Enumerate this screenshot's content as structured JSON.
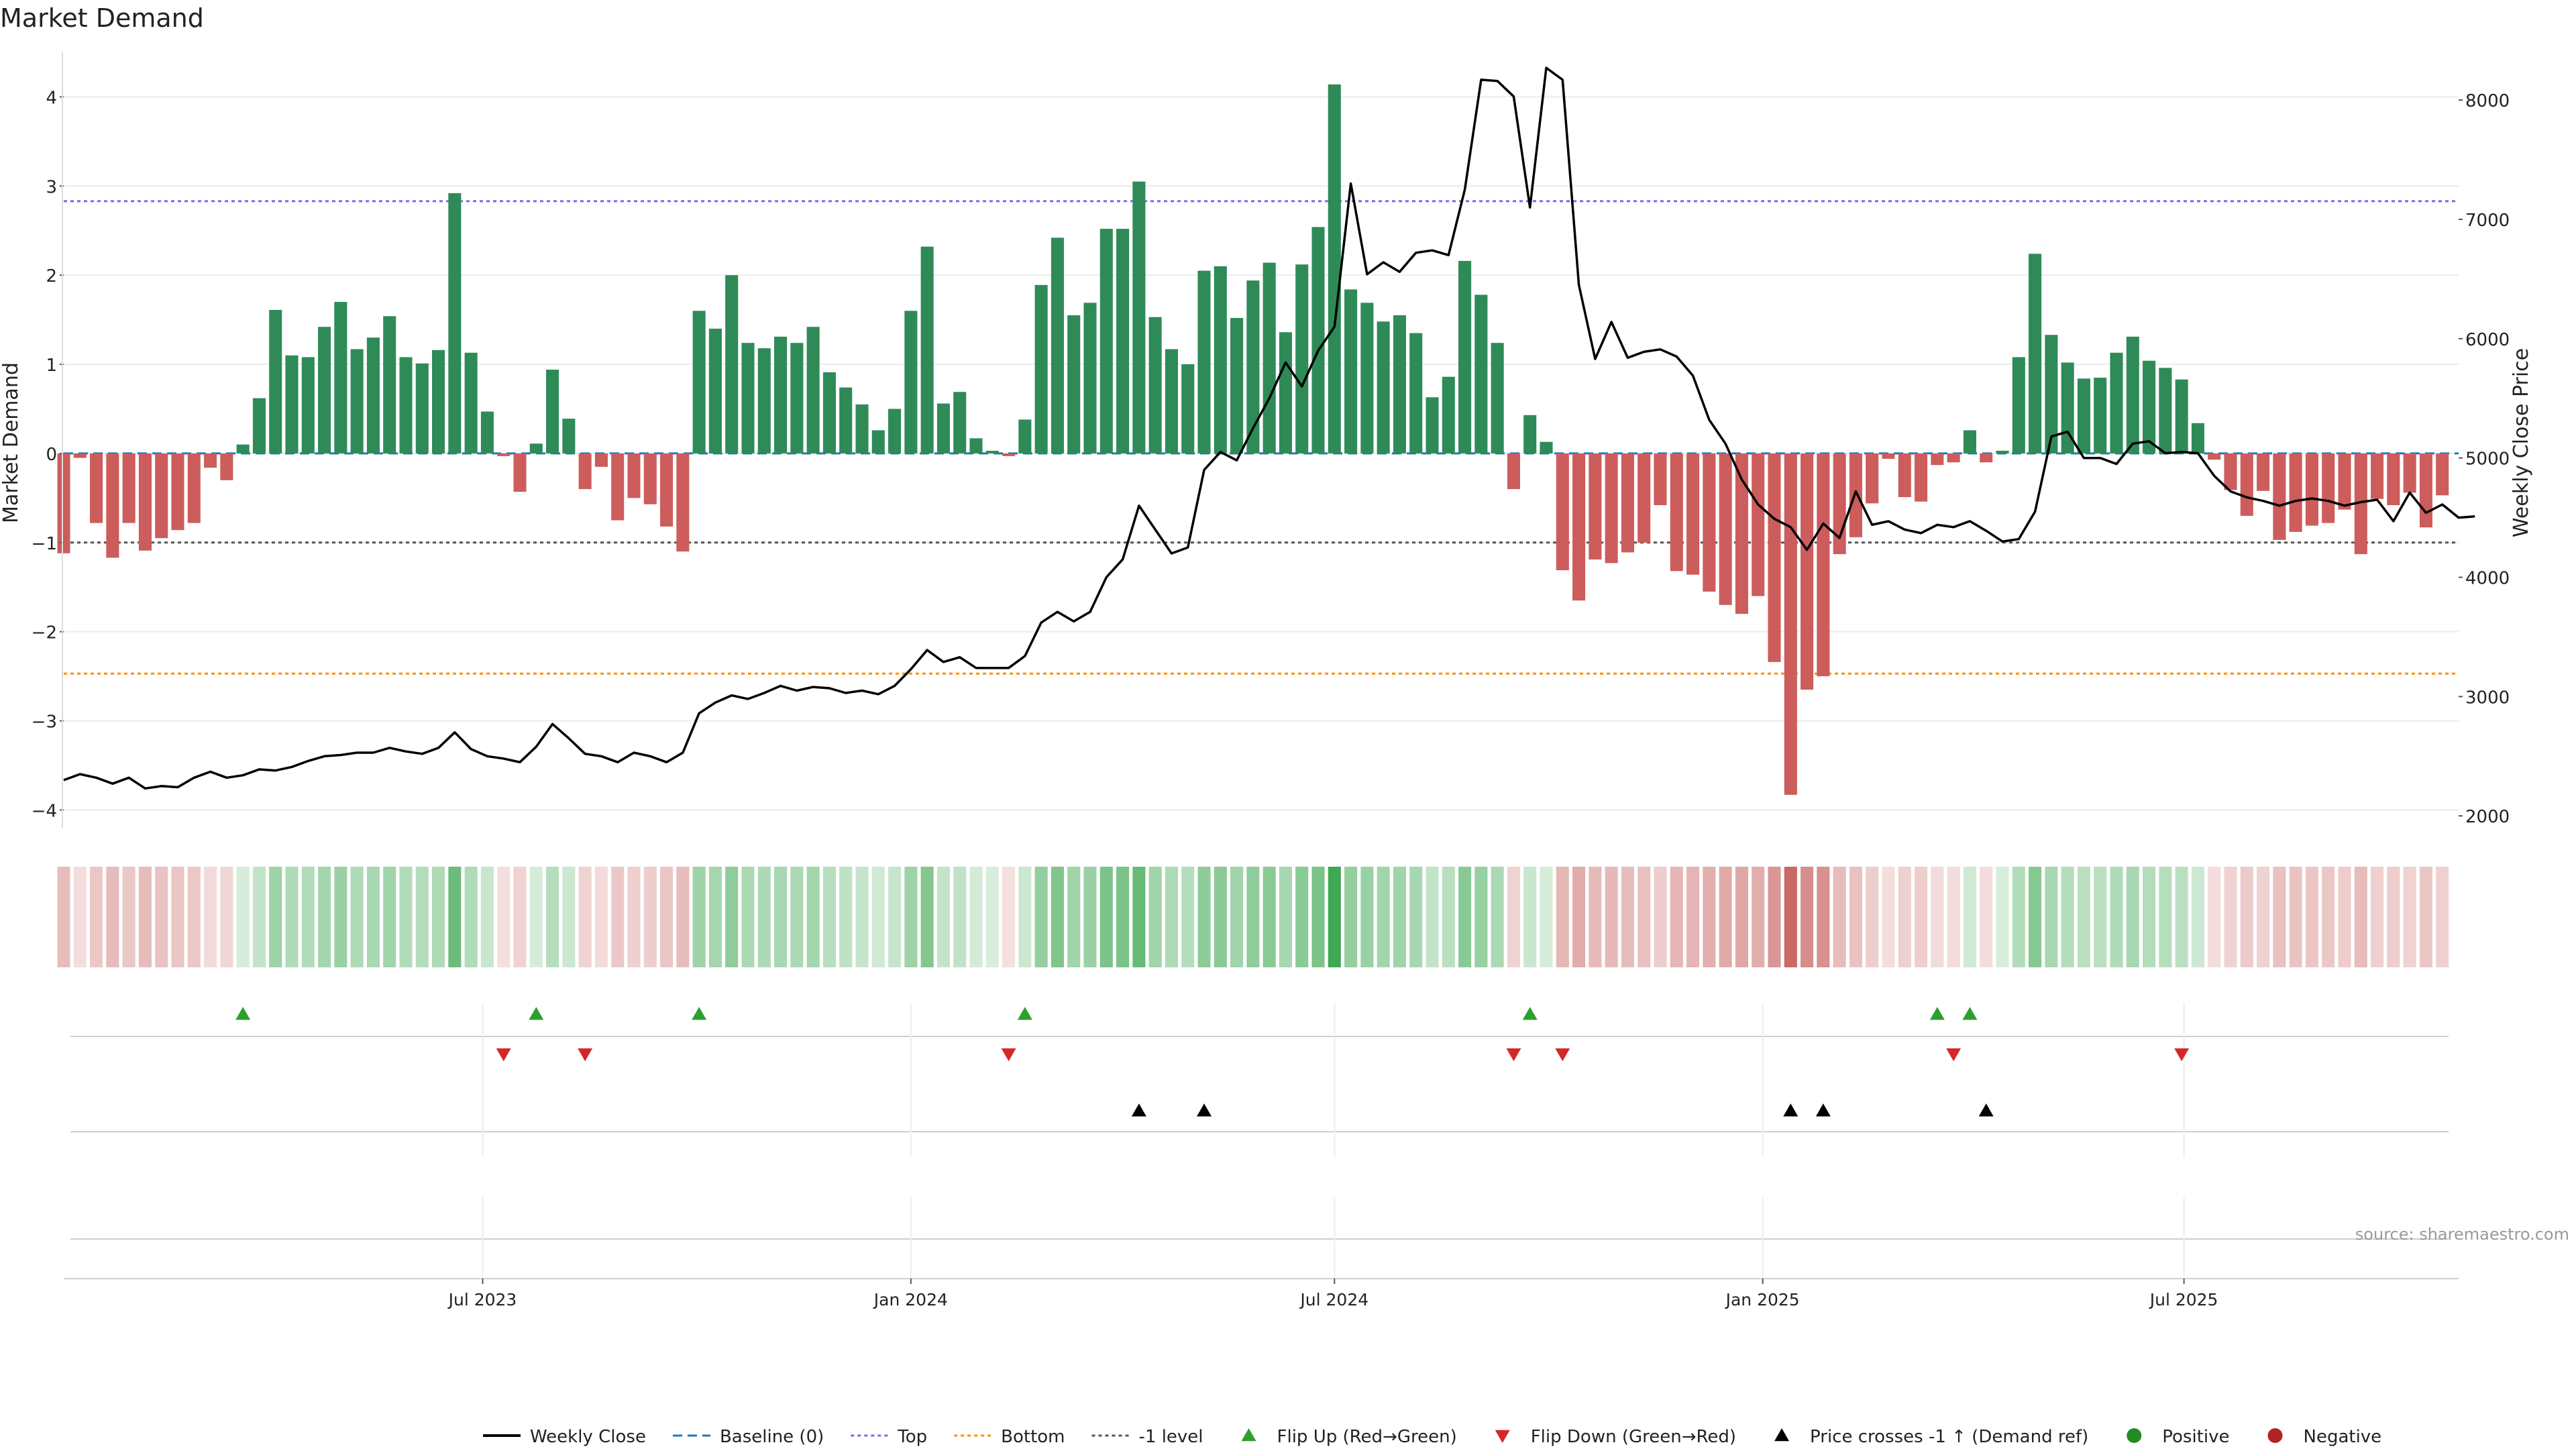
{
  "title": "Market Demand",
  "source": "source: sharemaestro.com",
  "colors": {
    "positive": "#2e8b57",
    "negative": "#cd5c5c",
    "price": "#000000",
    "baseline": "#1f77b4",
    "top": "#7b68ee",
    "bottom": "#ff8c00",
    "neg_level": "#555555",
    "flip_up": "#2ca02c",
    "flip_down": "#d62728",
    "dot_positive": "#228b22",
    "dot_negative": "#b22222"
  },
  "chart_data": {
    "type": "bar",
    "title": "Market Demand",
    "ylabel": "Market Demand",
    "y2label": "Weekly Close Price",
    "ylim": [
      -4.2,
      4.5
    ],
    "y2lim": [
      1900,
      8400
    ],
    "yticks": [
      4,
      3,
      2,
      1,
      0,
      -1,
      -2,
      -3,
      -4
    ],
    "yticklabels": [
      "4",
      "3",
      "2",
      "1",
      "0",
      "−1",
      "−2",
      "−3",
      "−4"
    ],
    "y2ticks": [
      8000,
      7000,
      6000,
      5000,
      4000,
      3000,
      2000
    ],
    "x_start": "2023-01-02",
    "x_end": "2025-10-27",
    "xticks": [
      {
        "date": "2023-07-01",
        "label": "Jul 2023"
      },
      {
        "date": "2024-01-01",
        "label": "Jan 2024"
      },
      {
        "date": "2024-07-01",
        "label": "Jul 2024"
      },
      {
        "date": "2025-01-01",
        "label": "Jan 2025"
      },
      {
        "date": "2025-07-01",
        "label": "Jul 2025"
      }
    ],
    "levels": {
      "baseline": 0,
      "top": 2.83,
      "bottom": -2.47,
      "minus_one": -1
    },
    "demand": [
      -1.12,
      -0.05,
      -0.78,
      -1.17,
      -0.78,
      -1.09,
      -0.95,
      -0.86,
      -0.78,
      -0.16,
      -0.3,
      0.1,
      0.62,
      1.61,
      1.1,
      1.08,
      1.42,
      1.7,
      1.17,
      1.3,
      1.54,
      1.08,
      1.01,
      1.16,
      2.92,
      1.13,
      0.47,
      -0.03,
      -0.43,
      0.11,
      0.94,
      0.39,
      -0.4,
      -0.15,
      -0.75,
      -0.5,
      -0.57,
      -0.82,
      -1.1,
      1.6,
      1.4,
      2.0,
      1.24,
      1.18,
      1.31,
      1.24,
      1.42,
      0.91,
      0.74,
      0.55,
      0.26,
      0.5,
      1.6,
      2.32,
      0.56,
      0.69,
      0.17,
      0.03,
      -0.03,
      0.38,
      1.89,
      2.42,
      1.55,
      1.69,
      2.52,
      2.52,
      3.05,
      1.53,
      1.17,
      1.0,
      2.05,
      2.1,
      1.52,
      1.94,
      2.14,
      1.36,
      2.12,
      2.54,
      4.14,
      1.84,
      1.69,
      1.48,
      1.55,
      1.35,
      0.63,
      0.86,
      2.16,
      1.78,
      1.24,
      -0.4,
      0.43,
      0.13,
      -1.31,
      -1.65,
      -1.19,
      -1.23,
      -1.11,
      -1.0,
      -0.58,
      -1.32,
      -1.36,
      -1.55,
      -1.7,
      -1.8,
      -1.6,
      -2.34,
      -3.83,
      -2.65,
      -2.5,
      -1.13,
      -0.94,
      -0.56,
      -0.06,
      -0.49,
      -0.54,
      -0.13,
      -0.1,
      0.26,
      -0.1,
      0.03,
      1.08,
      2.24,
      1.33,
      1.02,
      0.84,
      0.85,
      1.13,
      1.31,
      1.04,
      0.96,
      0.83,
      0.34,
      -0.07,
      -0.41,
      -0.7,
      -0.42,
      -0.97,
      -0.88,
      -0.81,
      -0.78,
      -0.63,
      -1.13,
      -0.51,
      -0.58,
      -0.44,
      -0.83,
      -0.47
    ],
    "price": [
      2300,
      2350,
      2320,
      2270,
      2320,
      2230,
      2250,
      2240,
      2320,
      2370,
      2320,
      2340,
      2390,
      2380,
      2410,
      2460,
      2500,
      2510,
      2530,
      2530,
      2570,
      2540,
      2520,
      2570,
      2700,
      2560,
      2500,
      2480,
      2450,
      2580,
      2770,
      2650,
      2520,
      2500,
      2450,
      2530,
      2500,
      2450,
      2530,
      2860,
      2950,
      3010,
      2980,
      3030,
      3090,
      3050,
      3080,
      3070,
      3030,
      3050,
      3020,
      3090,
      3230,
      3390,
      3290,
      3330,
      3240,
      3240,
      3240,
      3340,
      3620,
      3710,
      3630,
      3710,
      4000,
      4150,
      4600,
      4400,
      4200,
      4250,
      4900,
      5050,
      4980,
      5250,
      5500,
      5800,
      5600,
      5900,
      6100,
      7300,
      6540,
      6640,
      6560,
      6720,
      6740,
      6700,
      7250,
      8170,
      8160,
      8030,
      7100,
      8270,
      8170,
      6450,
      5830,
      6140,
      5840,
      5890,
      5910,
      5850,
      5690,
      5320,
      5120,
      4820,
      4610,
      4490,
      4420,
      4230,
      4450,
      4330,
      4720,
      4440,
      4470,
      4400,
      4370,
      4440,
      4420,
      4470,
      4390,
      4300,
      4320,
      4550,
      5180,
      5220,
      5000,
      5000,
      4950,
      5120,
      5140,
      5040,
      5050,
      5040,
      4850,
      4720,
      4670,
      4640,
      4600,
      4640,
      4660,
      4640,
      4600,
      4630,
      4650,
      4470,
      4710,
      4540,
      4610,
      4500,
      4510
    ],
    "flip_up_idx": [
      11,
      29,
      39,
      59,
      90,
      115,
      117
    ],
    "flip_down_idx": [
      27,
      32,
      58,
      89,
      92,
      116,
      130
    ],
    "price_cross_idx": [
      66,
      70,
      106,
      108,
      118
    ]
  },
  "legend": [
    {
      "key": "weekly_close",
      "label": "Weekly Close",
      "marker": "line"
    },
    {
      "key": "baseline",
      "label": "Baseline (0)",
      "marker": "dashed-blue"
    },
    {
      "key": "top",
      "label": "Top",
      "marker": "dotted-purple"
    },
    {
      "key": "bottom",
      "label": "Bottom",
      "marker": "dotted-orange"
    },
    {
      "key": "minus_one",
      "label": "-1 level",
      "marker": "dotted-gray"
    },
    {
      "key": "flip_up",
      "label": "Flip Up (Red→Green)",
      "marker": "triangle-up-green"
    },
    {
      "key": "flip_down",
      "label": "Flip Down (Green→Red)",
      "marker": "triangle-down-red"
    },
    {
      "key": "price_cross",
      "label": "Price crosses -1 ↑ (Demand ref)",
      "marker": "triangle-up-black"
    },
    {
      "key": "positive",
      "label": "Positive",
      "marker": "dot-green"
    },
    {
      "key": "negative",
      "label": "Negative",
      "marker": "dot-red"
    }
  ]
}
